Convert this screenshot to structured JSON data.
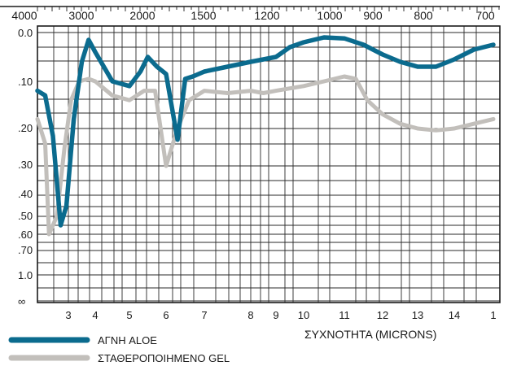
{
  "chart_data": {
    "type": "line",
    "title": "",
    "xlabel": "ΣΥΧΝΟΤΗΤΑ (MICRONS)",
    "ylabel": "",
    "x_ticks_bottom": [
      "3",
      "4",
      "5",
      "6",
      "7",
      "8",
      "9",
      "10",
      "11",
      "12",
      "13",
      "14",
      "1"
    ],
    "x_ticks_top": [
      "4000",
      "3000",
      "2000",
      "1500",
      "1200",
      "1000",
      "900",
      "800",
      "700"
    ],
    "y_ticks": [
      "0.0",
      ".10",
      ".20",
      ".30",
      ".40",
      ".50",
      ".60",
      ".70",
      "1.0",
      "∞"
    ],
    "y_scale": "absorbance (log transmittance)",
    "x_scale": "wavelength in microns, top axis in wavenumber cm-1",
    "xlim": [
      2.2,
      15
    ],
    "grid": true,
    "legend_position": "bottom-left",
    "series": [
      {
        "name": "ΑΓΝΗ ALOE",
        "color": "#0b6b8e",
        "points": [
          [
            2.2,
            0.12
          ],
          [
            2.4,
            0.13
          ],
          [
            2.6,
            0.22
          ],
          [
            2.8,
            0.55
          ],
          [
            2.95,
            0.45
          ],
          [
            3.2,
            0.18
          ],
          [
            3.5,
            0.06
          ],
          [
            3.75,
            0.015
          ],
          [
            4.0,
            0.04
          ],
          [
            4.5,
            0.1
          ],
          [
            5.0,
            0.11
          ],
          [
            5.3,
            0.08
          ],
          [
            5.5,
            0.05
          ],
          [
            5.75,
            0.07
          ],
          [
            6.0,
            0.085
          ],
          [
            6.3,
            0.23
          ],
          [
            6.5,
            0.095
          ],
          [
            6.7,
            0.09
          ],
          [
            7.0,
            0.08
          ],
          [
            7.5,
            0.07
          ],
          [
            8.0,
            0.06
          ],
          [
            8.5,
            0.055
          ],
          [
            9.0,
            0.05
          ],
          [
            9.5,
            0.03
          ],
          [
            10.0,
            0.02
          ],
          [
            10.5,
            0.01
          ],
          [
            11.0,
            0.012
          ],
          [
            11.5,
            0.025
          ],
          [
            12.0,
            0.045
          ],
          [
            12.5,
            0.06
          ],
          [
            13.0,
            0.07
          ],
          [
            13.5,
            0.07
          ],
          [
            14.0,
            0.055
          ],
          [
            14.5,
            0.035
          ],
          [
            15.0,
            0.025
          ]
        ]
      },
      {
        "name": "ΣΤΑΘΕΡΟΠΟΙΗΜΕΝΟ GEL",
        "color": "#c2bfbb",
        "points": [
          [
            2.2,
            0.18
          ],
          [
            2.4,
            0.24
          ],
          [
            2.5,
            0.6
          ],
          [
            2.7,
            0.5
          ],
          [
            2.9,
            0.25
          ],
          [
            3.1,
            0.14
          ],
          [
            3.4,
            0.1
          ],
          [
            3.75,
            0.095
          ],
          [
            4.0,
            0.1
          ],
          [
            4.5,
            0.13
          ],
          [
            5.0,
            0.14
          ],
          [
            5.4,
            0.12
          ],
          [
            5.7,
            0.12
          ],
          [
            6.0,
            0.3
          ],
          [
            6.3,
            0.2
          ],
          [
            6.6,
            0.14
          ],
          [
            7.0,
            0.12
          ],
          [
            7.5,
            0.125
          ],
          [
            8.0,
            0.12
          ],
          [
            8.5,
            0.125
          ],
          [
            9.0,
            0.12
          ],
          [
            9.5,
            0.115
          ],
          [
            10.0,
            0.11
          ],
          [
            10.5,
            0.1
          ],
          [
            11.0,
            0.09
          ],
          [
            11.3,
            0.095
          ],
          [
            11.6,
            0.14
          ],
          [
            12.0,
            0.17
          ],
          [
            12.5,
            0.19
          ],
          [
            13.0,
            0.2
          ],
          [
            13.5,
            0.205
          ],
          [
            14.0,
            0.2
          ],
          [
            14.5,
            0.19
          ],
          [
            15.0,
            0.18
          ]
        ]
      }
    ]
  }
}
